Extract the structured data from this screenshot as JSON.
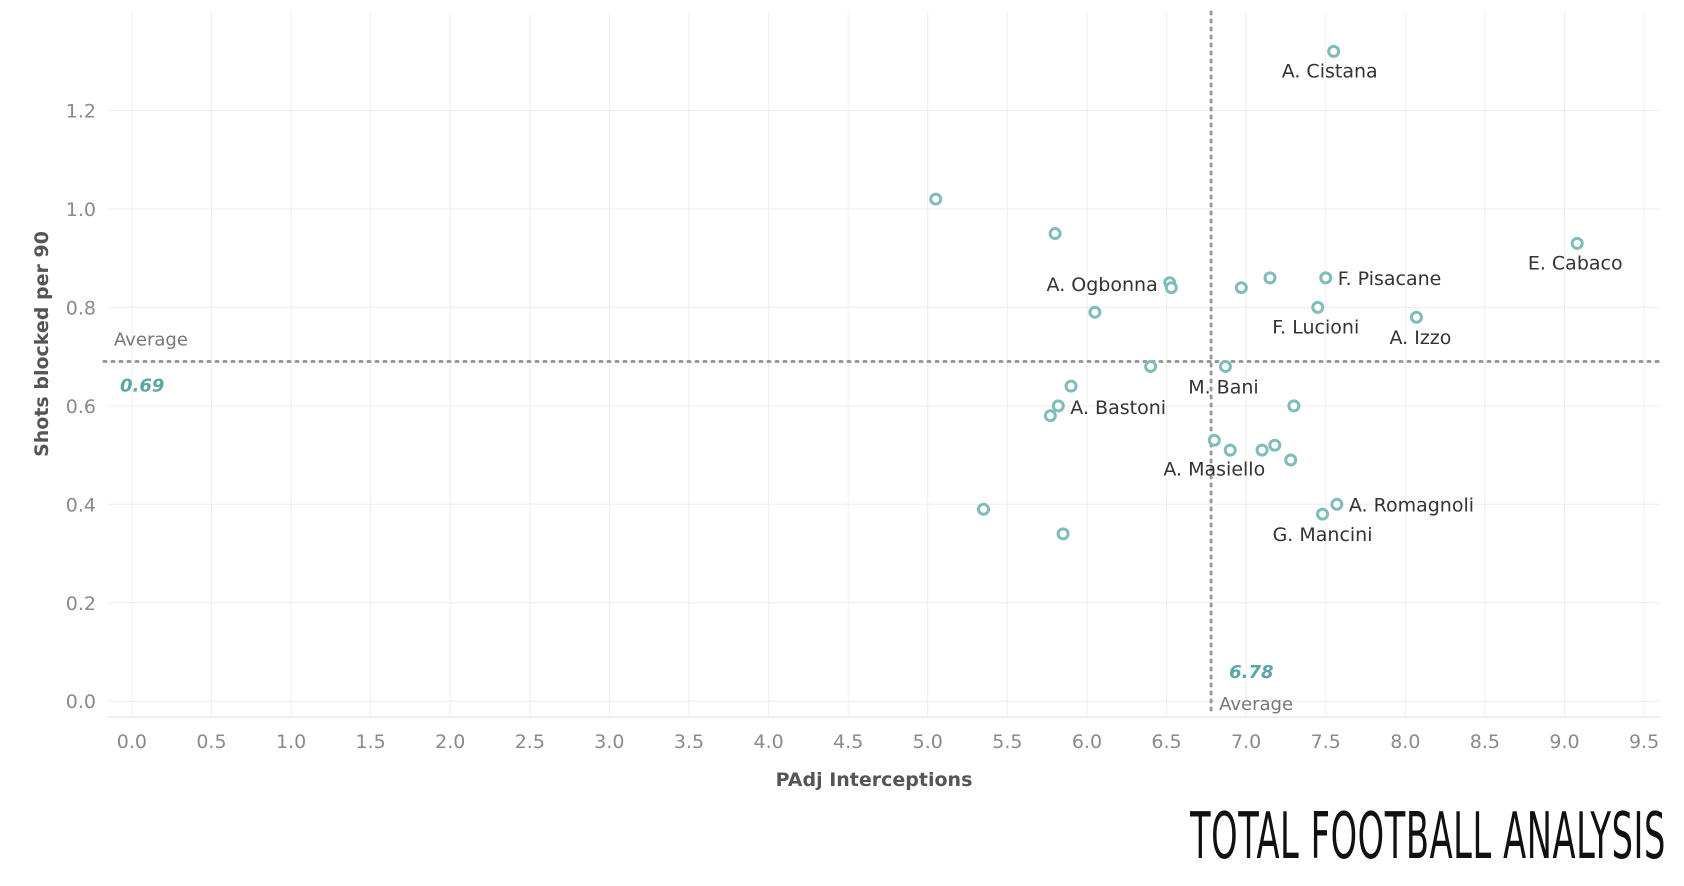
{
  "colors": {
    "point": "#7fbcbb",
    "avg_value": "#5aa6a4",
    "grid": "#eeeeee",
    "avg_line": "#9a9a9a"
  },
  "chart_data": {
    "type": "scatter",
    "xlabel": "PAdj Interceptions",
    "ylabel": "Shots blocked per 90",
    "xlim": [
      -0.15,
      9.6
    ],
    "ylim": [
      -0.03,
      1.4
    ],
    "x_ticks": [
      "0.0",
      "0.5",
      "1.0",
      "1.5",
      "2.0",
      "2.5",
      "3.0",
      "3.5",
      "4.0",
      "4.5",
      "5.0",
      "5.5",
      "6.0",
      "6.5",
      "7.0",
      "7.5",
      "8.0",
      "8.5",
      "9.0",
      "9.5"
    ],
    "y_ticks": [
      "0.0",
      "0.2",
      "0.4",
      "0.6",
      "0.8",
      "1.0",
      "1.2"
    ],
    "grid": true,
    "reference_lines": {
      "x_average": {
        "value": 6.78,
        "label": "Average",
        "value_label": "6.78"
      },
      "y_average": {
        "value": 0.69,
        "label": "Average",
        "value_label": "0.69"
      }
    },
    "points": [
      {
        "x": 7.55,
        "y": 1.32,
        "label": "A. Cistana"
      },
      {
        "x": 5.05,
        "y": 1.02,
        "label": ""
      },
      {
        "x": 5.8,
        "y": 0.95,
        "label": ""
      },
      {
        "x": 9.08,
        "y": 0.93,
        "label": "E. Cabaco"
      },
      {
        "x": 7.5,
        "y": 0.86,
        "label": "F. Pisacane"
      },
      {
        "x": 7.15,
        "y": 0.86,
        "label": ""
      },
      {
        "x": 6.52,
        "y": 0.85,
        "label": "A. Ogbonna"
      },
      {
        "x": 6.53,
        "y": 0.84,
        "label": ""
      },
      {
        "x": 6.97,
        "y": 0.84,
        "label": ""
      },
      {
        "x": 7.45,
        "y": 0.8,
        "label": "F. Lucioni"
      },
      {
        "x": 8.07,
        "y": 0.78,
        "label": "A. Izzo"
      },
      {
        "x": 6.05,
        "y": 0.79,
        "label": ""
      },
      {
        "x": 6.4,
        "y": 0.68,
        "label": ""
      },
      {
        "x": 6.87,
        "y": 0.68,
        "label": "M. Bani"
      },
      {
        "x": 5.9,
        "y": 0.64,
        "label": ""
      },
      {
        "x": 5.82,
        "y": 0.6,
        "label": "A. Bastoni"
      },
      {
        "x": 5.77,
        "y": 0.58,
        "label": ""
      },
      {
        "x": 7.3,
        "y": 0.6,
        "label": ""
      },
      {
        "x": 6.8,
        "y": 0.53,
        "label": "A. Masiello"
      },
      {
        "x": 6.9,
        "y": 0.51,
        "label": ""
      },
      {
        "x": 7.1,
        "y": 0.51,
        "label": ""
      },
      {
        "x": 7.18,
        "y": 0.52,
        "label": ""
      },
      {
        "x": 7.28,
        "y": 0.49,
        "label": ""
      },
      {
        "x": 7.57,
        "y": 0.4,
        "label": "A. Romagnoli"
      },
      {
        "x": 7.48,
        "y": 0.38,
        "label": "G. Mancini"
      },
      {
        "x": 5.35,
        "y": 0.39,
        "label": ""
      },
      {
        "x": 5.85,
        "y": 0.34,
        "label": ""
      }
    ]
  },
  "logo": {
    "text": "Total Football Analysis"
  }
}
